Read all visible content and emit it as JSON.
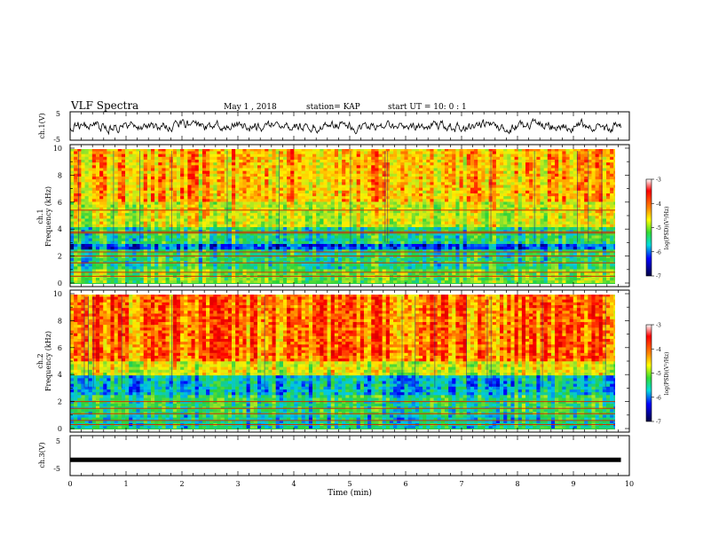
{
  "header": {
    "title": "VLF Spectra",
    "date": "May 1  , 2018",
    "station": "station= KAP",
    "start_time": "start  UT  =   10: 0  : 1"
  },
  "colors": {
    "background": "#ffffff",
    "trace": "#000000",
    "spec_low": "#00008b",
    "spec_mid": "#33cc33",
    "spec_high": "#ff0000"
  },
  "chart_data": [
    {
      "type": "line",
      "panel": "ch1-waveform",
      "ylabel": "ch.1(V)",
      "ylim": [
        -5,
        5
      ],
      "yticks": [
        "5",
        "-5"
      ],
      "xlim": [
        0,
        10
      ],
      "description_values": "noisy signal roughly between -3 and 3 V"
    },
    {
      "type": "heatmap",
      "panel": "ch1-spectrogram",
      "ylabel": "ch.1\nFrequency  (kHz)",
      "ylabel_line1": "ch.1",
      "ylabel_line2": "Frequency  (kHz)",
      "ylim": [
        0,
        10
      ],
      "yticks": [
        "0",
        "2",
        "4",
        "6",
        "8",
        "10"
      ],
      "xlim": [
        0,
        9.85
      ],
      "colorbar": {
        "label": "log(PSD)(V²/Hz)",
        "range": [
          -7,
          -3
        ],
        "ticks": [
          "-3",
          "-4",
          "-5",
          "-6",
          "-7"
        ]
      },
      "bands_khz": [
        0.5,
        0.8,
        1.5,
        2.0,
        2.3,
        3.7,
        3.8,
        5.4
      ]
    },
    {
      "type": "heatmap",
      "panel": "ch2-spectrogram",
      "ylabel_line1": "ch.2",
      "ylabel_line2": "Frequency  (kHz)",
      "ylim": [
        0,
        10
      ],
      "yticks": [
        "0",
        "2",
        "4",
        "6",
        "8",
        "10"
      ],
      "xlim": [
        0,
        9.85
      ],
      "colorbar": {
        "label": "log(PSD)(V²/Hz)",
        "range": [
          -7,
          -3
        ],
        "ticks": [
          "-3",
          "-4",
          "-5",
          "-6",
          "-7"
        ]
      },
      "bands_khz": [
        0.3,
        0.6,
        1.1,
        1.5,
        2.0
      ]
    },
    {
      "type": "line",
      "panel": "ch3-waveform",
      "ylabel": "ch.3(V)",
      "ylim": [
        -5,
        5
      ],
      "yticks": [
        "5",
        "-5"
      ],
      "y_constant": -1.3,
      "xlim": [
        0,
        10
      ],
      "xlabel": "Time  (min)",
      "xticks": [
        "0",
        "1",
        "2",
        "3",
        "4",
        "5",
        "6",
        "7",
        "8",
        "9",
        "10"
      ]
    }
  ]
}
